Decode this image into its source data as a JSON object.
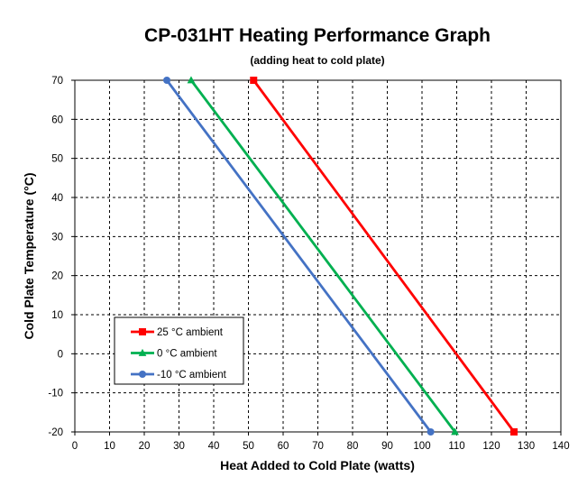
{
  "chart_data": {
    "type": "line",
    "title": "CP-031HT Heating Performance Graph",
    "subtitle": "(adding heat to cold plate)",
    "xlabel": "Heat Added to Cold Plate (watts)",
    "ylabel": "Cold Plate Temperature (°C)",
    "xlim": [
      0,
      140
    ],
    "ylim": [
      -20,
      70
    ],
    "xticks": [
      0,
      10,
      20,
      30,
      40,
      50,
      60,
      70,
      80,
      90,
      100,
      110,
      120,
      130,
      140
    ],
    "yticks": [
      -20,
      -10,
      0,
      10,
      20,
      30,
      40,
      50,
      60,
      70
    ],
    "xtick_labels": [
      "0",
      "10",
      "20",
      "30",
      "40",
      "50",
      "60",
      "70",
      "80",
      "90",
      "100",
      "110",
      "120",
      "130",
      "140"
    ],
    "ytick_labels": [
      "-20",
      "-10",
      "0",
      "10",
      "20",
      "30",
      "40",
      "50",
      "60",
      "70"
    ],
    "grid": true,
    "legend_position": "bottom-left",
    "series": [
      {
        "name": "25 °C ambient",
        "color": "#ff0000",
        "marker": "square",
        "x": [
          51.5,
          126.5
        ],
        "y": [
          70,
          -20
        ]
      },
      {
        "name": "0 °C ambient",
        "color": "#00b050",
        "marker": "triangle",
        "x": [
          33.5,
          109.5
        ],
        "y": [
          70,
          -20
        ]
      },
      {
        "name": "-10 °C ambient",
        "color": "#4472c4",
        "marker": "circle",
        "x": [
          26.5,
          102.5
        ],
        "y": [
          70,
          -20
        ]
      }
    ]
  }
}
